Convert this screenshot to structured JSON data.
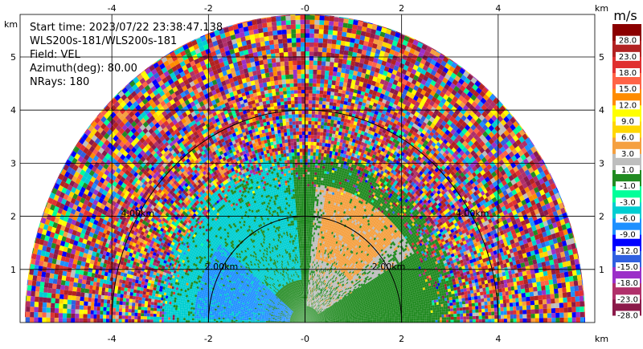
{
  "chart_data": {
    "type": "heatmap",
    "projection": "polar-sector",
    "info_lines": [
      "Start time: 2023/07/22 23:38:47.138",
      "WLS200s-181/WLS200s-181",
      "Field: VEL",
      "Azimuth(deg): 80.00",
      "NRays: 180"
    ],
    "axis_unit_label": "km",
    "xlim": [
      -5.9,
      6.0
    ],
    "ylim": [
      0,
      5.8
    ],
    "x_ticks": [
      -4,
      -2,
      0,
      2,
      4
    ],
    "x_tick_labels": [
      "-4",
      "-2",
      "-0",
      "2",
      "4"
    ],
    "y_ticks": [
      1,
      2,
      3,
      4,
      5
    ],
    "y_tick_labels": [
      "1",
      "2",
      "3",
      "4",
      "5"
    ],
    "grid": true,
    "max_range_km": 5.8,
    "range_rings_km": [
      2,
      4
    ],
    "ring_labels": [
      "2.00km",
      "4.00km"
    ],
    "colorbar": {
      "unit": "m/s",
      "placement": "right",
      "boundaries": [
        -28.0,
        -23.0,
        -18.0,
        -15.0,
        -12.0,
        -9.0,
        -6.0,
        -3.0,
        -1.0,
        1.0,
        3.0,
        6.0,
        9.0,
        12.0,
        15.0,
        18.0,
        23.0,
        28.0
      ],
      "tick_labels": [
        "-28.0",
        "-23.0",
        "-18.0",
        "-15.0",
        "-12.0",
        "-9.0",
        "-6.0",
        "-3.0",
        "-1.0",
        "1.0",
        "3.0",
        "6.0",
        "9.0",
        "12.0",
        "15.0",
        "18.0",
        "23.0",
        "28.0"
      ],
      "colors": [
        "#8b1a4a",
        "#b0306a",
        "#9b30c8",
        "#3060e0",
        "#0000ff",
        "#1e90ff",
        "#00ced1",
        "#00ff99",
        "#228b22",
        "#bebebe",
        "#f5a040",
        "#ffd700",
        "#ffff00",
        "#ff8c00",
        "#ff6347",
        "#e03030",
        "#b22222",
        "#8b0000"
      ]
    },
    "regions": [
      {
        "description": "near-zero background",
        "velocity": 0.0
      },
      {
        "sector_deg": [
          95,
          180
        ],
        "range_km": [
          0.8,
          3.2
        ],
        "velocity": -4.5
      },
      {
        "sector_deg": [
          140,
          178
        ],
        "range_km": [
          0.3,
          2.3
        ],
        "velocity": -7.5
      },
      {
        "sector_deg": [
          30,
          85
        ],
        "range_km": [
          0.3,
          2.6
        ],
        "velocity": 2.0
      },
      {
        "sector_deg": [
          40,
          80
        ],
        "range_km": [
          1.2,
          2.6
        ],
        "velocity": 4.5
      },
      {
        "sector_deg": [
          0,
          180
        ],
        "range_km": [
          3.2,
          5.8
        ],
        "velocity": "noise"
      }
    ]
  }
}
